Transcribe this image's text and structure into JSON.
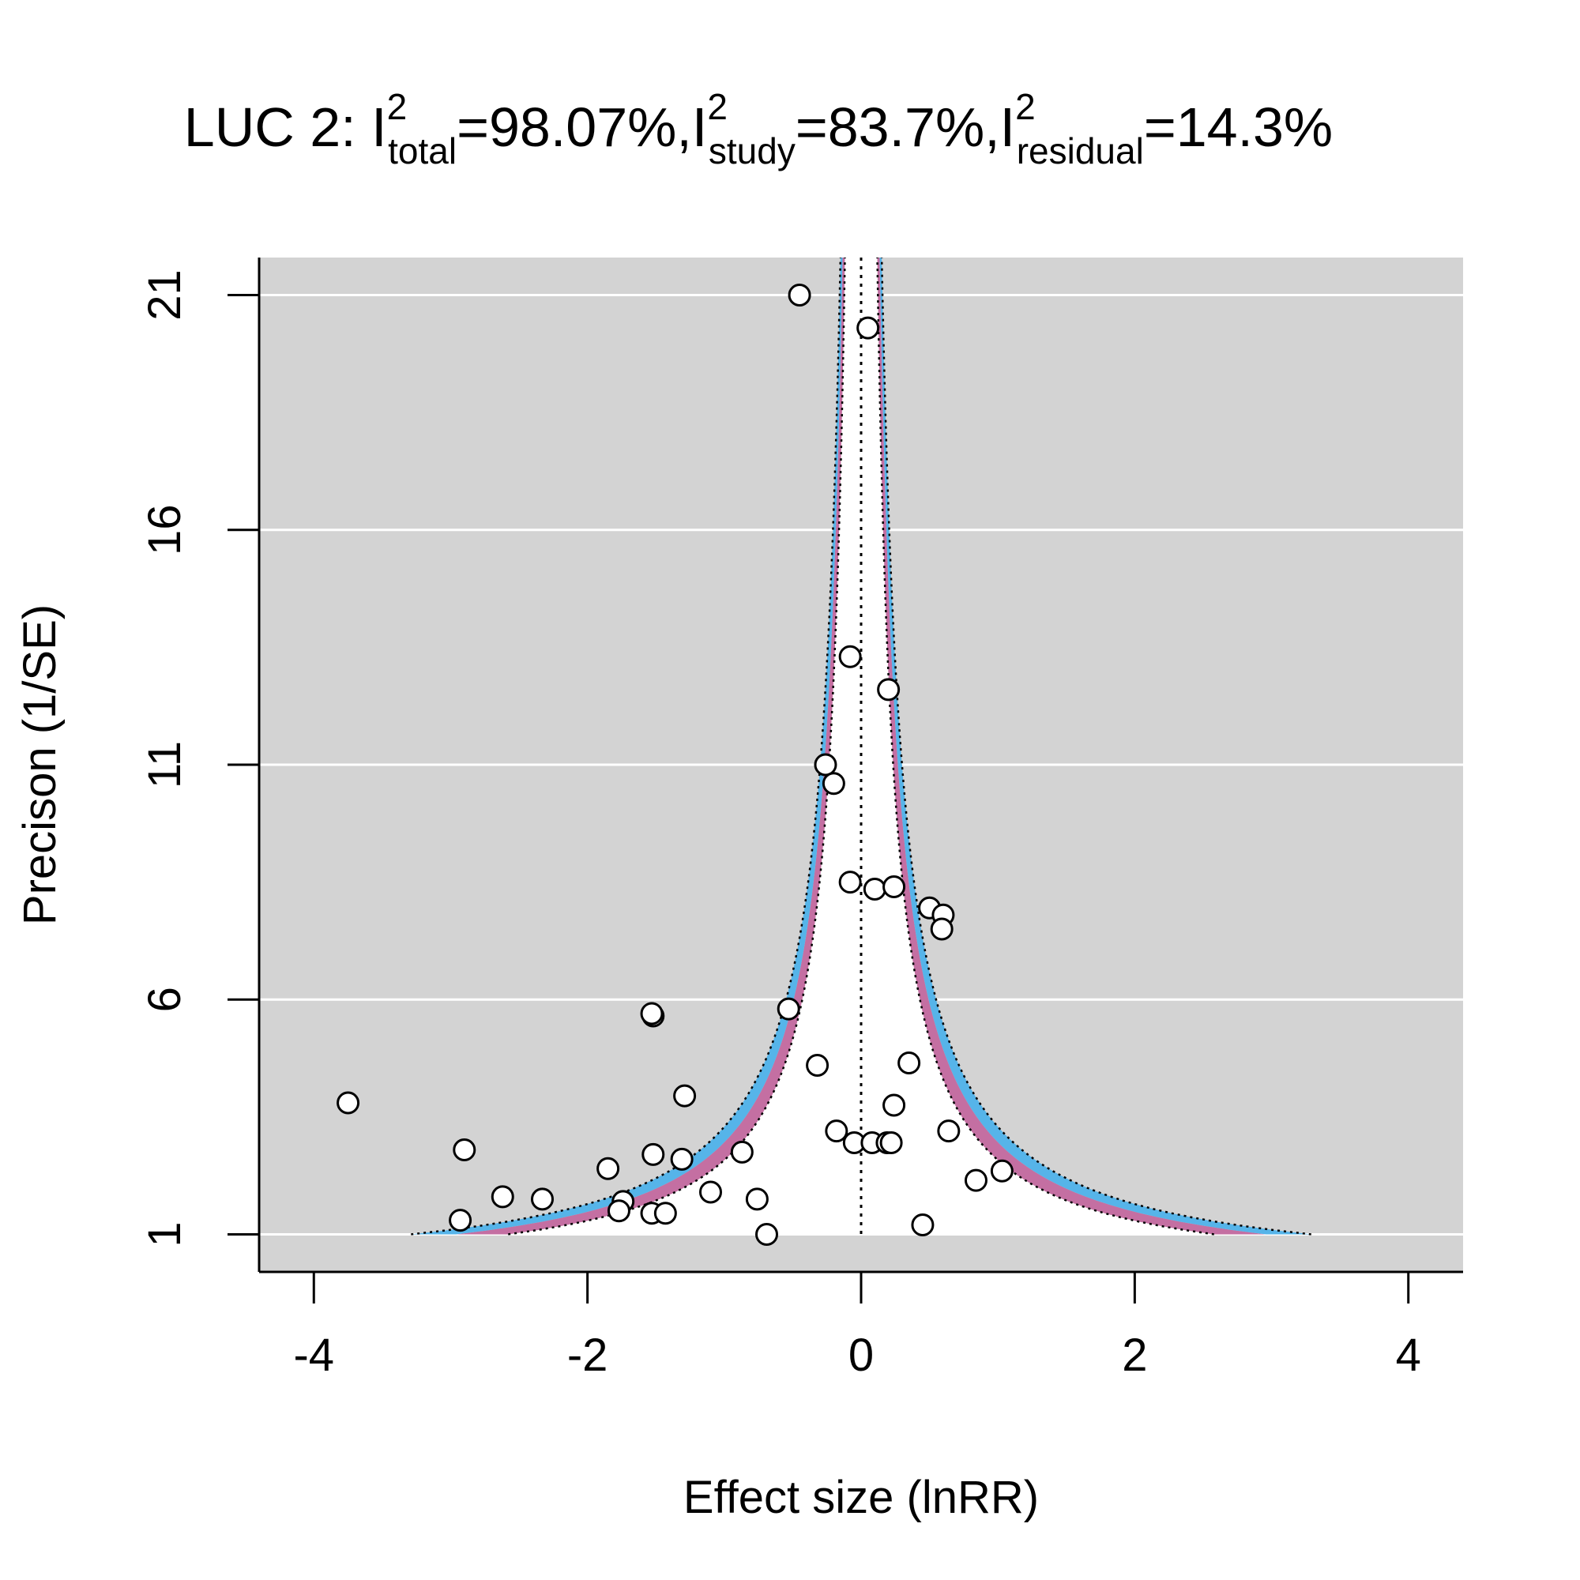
{
  "chart_data": {
    "type": "scatter",
    "title": {
      "prefix": "LUC 2: ",
      "parts": [
        {
          "base": "I",
          "sup": "2",
          "sub": "total",
          "value": "=98.07%,"
        },
        {
          "base": "I",
          "sup": "2",
          "sub": "study",
          "value": "=83.7%,"
        },
        {
          "base": "I",
          "sup": "2",
          "sub": "residual",
          "value": "=14.3%"
        }
      ]
    },
    "xlabel": "Effect size (lnRR)",
    "ylabel": "Precison (1/SE)",
    "xlim": [
      -4.4,
      4.4
    ],
    "ylim": [
      0.2,
      21.8
    ],
    "x_ticks": [
      -4,
      -2,
      0,
      2,
      4
    ],
    "x_tick_labels": [
      "-4",
      "-2",
      "0",
      "2",
      "4"
    ],
    "y_ticks": [
      1,
      6,
      11,
      16,
      21
    ],
    "y_tick_labels": [
      "1",
      "6",
      "11",
      "16",
      "21"
    ],
    "grid": "horizontal",
    "reference_line_x": 0,
    "funnel": {
      "center": 0,
      "inner_half_width_at_precision_1": 2.58,
      "outer_half_width_at_precision_1": 3.29,
      "band_colors": {
        "inner": "#c46fa2",
        "outer": "#56b4e9"
      }
    },
    "points": [
      {
        "x": -0.45,
        "y": 21.0
      },
      {
        "x": 0.05,
        "y": 20.3
      },
      {
        "x": -0.08,
        "y": 13.3
      },
      {
        "x": 0.2,
        "y": 12.6
      },
      {
        "x": -0.26,
        "y": 11.0
      },
      {
        "x": -0.2,
        "y": 10.6
      },
      {
        "x": -0.08,
        "y": 8.5
      },
      {
        "x": 0.1,
        "y": 8.35
      },
      {
        "x": 0.24,
        "y": 8.4
      },
      {
        "x": 0.5,
        "y": 7.95
      },
      {
        "x": 0.6,
        "y": 7.8
      },
      {
        "x": 0.59,
        "y": 7.5
      },
      {
        "x": -0.53,
        "y": 5.8
      },
      {
        "x": -1.52,
        "y": 5.65
      },
      {
        "x": -1.53,
        "y": 5.7
      },
      {
        "x": -0.32,
        "y": 4.6
      },
      {
        "x": 0.35,
        "y": 4.65
      },
      {
        "x": -3.75,
        "y": 3.8
      },
      {
        "x": -1.29,
        "y": 3.95
      },
      {
        "x": 0.24,
        "y": 3.75
      },
      {
        "x": -0.18,
        "y": 3.2
      },
      {
        "x": 0.64,
        "y": 3.2
      },
      {
        "x": -0.05,
        "y": 2.95
      },
      {
        "x": 0.08,
        "y": 2.95
      },
      {
        "x": 0.19,
        "y": 2.95
      },
      {
        "x": 0.22,
        "y": 2.95
      },
      {
        "x": -2.9,
        "y": 2.8
      },
      {
        "x": -0.87,
        "y": 2.75
      },
      {
        "x": -1.52,
        "y": 2.7
      },
      {
        "x": -1.31,
        "y": 2.6
      },
      {
        "x": -1.85,
        "y": 2.4
      },
      {
        "x": 1.03,
        "y": 2.35
      },
      {
        "x": 0.84,
        "y": 2.15
      },
      {
        "x": -1.1,
        "y": 1.9
      },
      {
        "x": -2.62,
        "y": 1.8
      },
      {
        "x": -2.33,
        "y": 1.75
      },
      {
        "x": -1.74,
        "y": 1.7
      },
      {
        "x": -0.76,
        "y": 1.75
      },
      {
        "x": -1.77,
        "y": 1.5
      },
      {
        "x": -1.53,
        "y": 1.45
      },
      {
        "x": -1.43,
        "y": 1.45
      },
      {
        "x": -2.93,
        "y": 1.3
      },
      {
        "x": 0.45,
        "y": 1.2
      },
      {
        "x": -0.69,
        "y": 1.0
      }
    ]
  }
}
